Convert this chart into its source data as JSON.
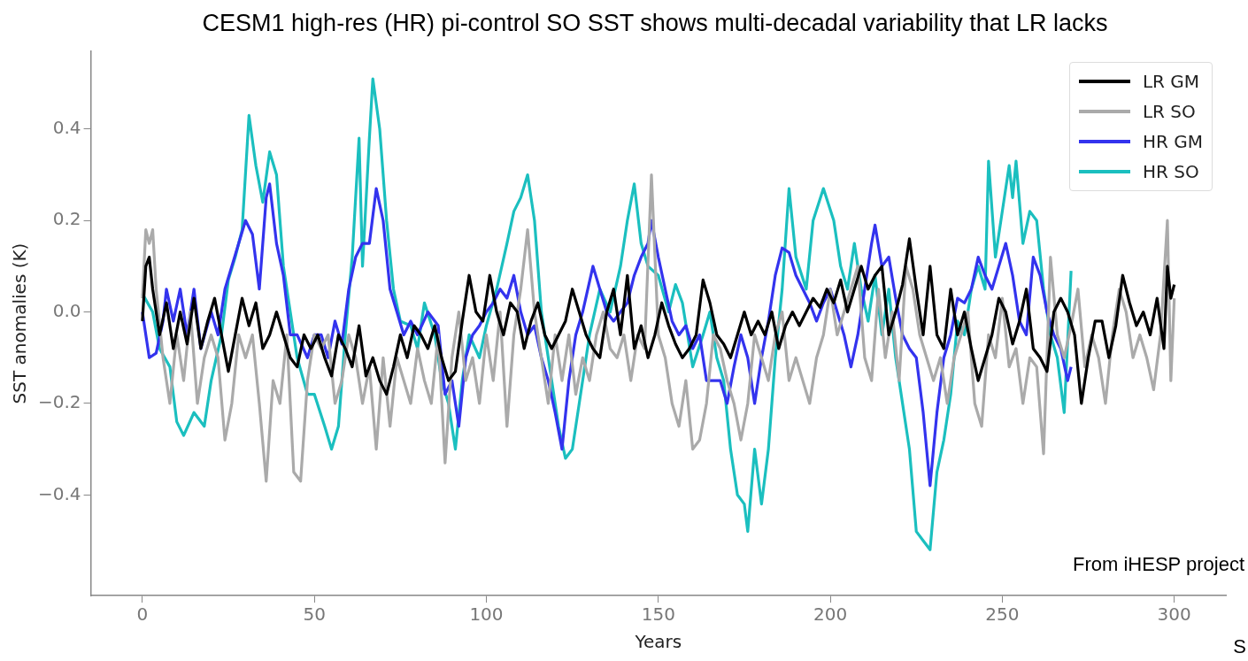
{
  "chart_data": {
    "type": "line",
    "title": "CESM1 high-res (HR) pi-control SO SST shows multi-decadal variability that LR lacks",
    "xlabel": "Years",
    "ylabel": "SST anomalies (K)",
    "xlim": [
      -15,
      315
    ],
    "xticks": [
      0,
      50,
      100,
      150,
      200,
      250,
      300
    ],
    "ylim": [
      -0.62,
      0.57
    ],
    "yticks": [
      {
        "value": -0.4,
        "label": "−0.4"
      },
      {
        "value": -0.2,
        "label": "−0.2"
      },
      {
        "value": 0,
        "label": "0.0"
      },
      {
        "value": 0.2,
        "label": "0.2"
      },
      {
        "value": 0.4,
        "label": "0.4"
      }
    ],
    "grid": false,
    "legend": "top right",
    "marker": "none",
    "line_style": "solid",
    "annotations": [
      "From iHESP project",
      "S"
    ],
    "series": [
      {
        "name": "LR GM",
        "color": "#000000",
        "x": [
          0,
          1,
          2,
          3,
          5,
          7,
          9,
          11,
          13,
          15,
          17,
          19,
          21,
          23,
          25,
          27,
          29,
          31,
          33,
          35,
          37,
          39,
          41,
          43,
          45,
          47,
          49,
          51,
          53,
          55,
          57,
          59,
          61,
          63,
          65,
          67,
          69,
          71,
          73,
          75,
          77,
          79,
          81,
          83,
          85,
          87,
          89,
          91,
          93,
          95,
          97,
          99,
          101,
          103,
          105,
          107,
          109,
          111,
          113,
          115,
          117,
          119,
          121,
          123,
          125,
          127,
          129,
          131,
          133,
          135,
          137,
          139,
          141,
          143,
          145,
          147,
          149,
          151,
          153,
          155,
          157,
          159,
          161,
          163,
          165,
          167,
          169,
          171,
          173,
          175,
          177,
          179,
          181,
          183,
          185,
          187,
          189,
          191,
          193,
          195,
          197,
          199,
          201,
          203,
          205,
          207,
          209,
          211,
          213,
          215,
          217,
          219,
          221,
          223,
          225,
          227,
          229,
          231,
          233,
          235,
          237,
          239,
          241,
          243,
          245,
          247,
          249,
          251,
          253,
          255,
          257,
          259,
          261,
          263,
          265,
          267,
          269,
          271,
          273,
          275,
          277,
          279,
          281,
          283,
          285,
          287,
          289,
          291,
          293,
          295,
          297,
          298,
          299,
          300
        ],
        "values": [
          -0.02,
          0.1,
          0.12,
          0.05,
          -0.05,
          0.02,
          -0.08,
          0.0,
          -0.07,
          0.03,
          -0.08,
          -0.02,
          0.03,
          -0.05,
          -0.13,
          -0.05,
          0.03,
          -0.03,
          0.02,
          -0.08,
          -0.05,
          0.0,
          -0.05,
          -0.1,
          -0.12,
          -0.05,
          -0.08,
          -0.05,
          -0.1,
          -0.14,
          -0.05,
          -0.08,
          -0.12,
          -0.03,
          -0.14,
          -0.1,
          -0.15,
          -0.18,
          -0.12,
          -0.05,
          -0.1,
          -0.03,
          -0.05,
          -0.08,
          -0.03,
          -0.1,
          -0.15,
          -0.13,
          -0.02,
          0.08,
          0.0,
          -0.02,
          0.08,
          0.0,
          -0.05,
          0.02,
          0.0,
          -0.08,
          -0.02,
          0.02,
          -0.05,
          -0.08,
          -0.05,
          -0.02,
          0.05,
          0.0,
          -0.05,
          -0.08,
          -0.1,
          0.0,
          0.05,
          -0.05,
          0.08,
          -0.08,
          -0.03,
          -0.1,
          -0.05,
          0.02,
          -0.03,
          -0.07,
          -0.1,
          -0.08,
          -0.05,
          0.07,
          0.02,
          -0.05,
          -0.07,
          -0.1,
          -0.05,
          0.0,
          -0.05,
          -0.02,
          -0.05,
          0.0,
          -0.08,
          -0.03,
          0.0,
          -0.03,
          0.0,
          0.03,
          0.01,
          0.05,
          0.02,
          0.07,
          0.0,
          0.05,
          0.1,
          0.05,
          0.08,
          0.1,
          -0.05,
          0.0,
          0.06,
          0.16,
          0.05,
          -0.05,
          0.1,
          -0.05,
          -0.08,
          0.05,
          -0.05,
          0.0,
          -0.08,
          -0.15,
          -0.1,
          -0.05,
          0.03,
          0.0,
          -0.07,
          -0.02,
          0.05,
          -0.08,
          -0.1,
          -0.13,
          0.0,
          0.03,
          0.0,
          -0.05,
          -0.2,
          -0.1,
          -0.02,
          -0.02,
          -0.1,
          -0.03,
          0.08,
          0.02,
          -0.03,
          0.0,
          -0.05,
          0.03,
          -0.08,
          0.1,
          0.03,
          0.06
        ]
      },
      {
        "name": "LR SO",
        "color": "#aaaaaa",
        "x": [
          0,
          1,
          2,
          3,
          4,
          6,
          8,
          10,
          12,
          14,
          16,
          18,
          20,
          22,
          24,
          26,
          28,
          30,
          32,
          34,
          36,
          38,
          40,
          42,
          44,
          46,
          48,
          50,
          52,
          54,
          56,
          58,
          60,
          62,
          64,
          66,
          68,
          70,
          72,
          74,
          76,
          78,
          80,
          82,
          84,
          86,
          88,
          90,
          92,
          94,
          96,
          98,
          100,
          102,
          104,
          106,
          108,
          110,
          112,
          114,
          116,
          118,
          120,
          122,
          124,
          126,
          128,
          130,
          132,
          134,
          136,
          138,
          140,
          142,
          144,
          146,
          148,
          150,
          152,
          154,
          156,
          158,
          160,
          162,
          164,
          166,
          168,
          170,
          172,
          174,
          176,
          178,
          180,
          182,
          184,
          186,
          188,
          190,
          192,
          194,
          196,
          198,
          200,
          202,
          204,
          206,
          208,
          210,
          212,
          214,
          216,
          218,
          220,
          222,
          224,
          226,
          228,
          230,
          232,
          234,
          236,
          238,
          240,
          242,
          244,
          246,
          248,
          250,
          252,
          254,
          256,
          258,
          260,
          262,
          264,
          266,
          268,
          270,
          272,
          274,
          276,
          278,
          280,
          282,
          284,
          286,
          288,
          290,
          292,
          294,
          296,
          298,
          299,
          300
        ],
        "values": [
          0.03,
          0.18,
          0.15,
          0.18,
          0.05,
          -0.1,
          -0.2,
          -0.05,
          -0.15,
          0.0,
          -0.2,
          -0.1,
          -0.05,
          -0.1,
          -0.28,
          -0.2,
          -0.05,
          -0.1,
          -0.05,
          -0.2,
          -0.37,
          -0.15,
          -0.2,
          -0.05,
          -0.35,
          -0.37,
          -0.15,
          -0.05,
          -0.08,
          -0.05,
          -0.2,
          -0.15,
          -0.05,
          -0.1,
          -0.2,
          -0.12,
          -0.3,
          -0.1,
          -0.25,
          -0.1,
          -0.15,
          -0.2,
          -0.08,
          -0.15,
          -0.2,
          -0.05,
          -0.33,
          -0.1,
          0.0,
          -0.15,
          -0.1,
          -0.2,
          -0.05,
          -0.15,
          0.0,
          -0.25,
          -0.05,
          0.05,
          0.18,
          0.0,
          -0.1,
          -0.2,
          -0.05,
          -0.15,
          -0.05,
          -0.18,
          -0.1,
          -0.15,
          -0.05,
          0.0,
          -0.08,
          -0.1,
          -0.05,
          -0.15,
          -0.05,
          -0.08,
          0.3,
          -0.05,
          -0.1,
          -0.2,
          -0.25,
          -0.15,
          -0.3,
          -0.28,
          -0.2,
          -0.05,
          -0.08,
          -0.15,
          -0.2,
          -0.28,
          -0.2,
          -0.05,
          -0.1,
          -0.15,
          -0.05,
          0.0,
          -0.15,
          -0.1,
          -0.15,
          -0.2,
          -0.1,
          -0.05,
          0.05,
          -0.05,
          0.0,
          0.05,
          0.1,
          -0.1,
          -0.15,
          0.05,
          -0.1,
          0.0,
          -0.15,
          0.1,
          0.05,
          -0.05,
          -0.1,
          -0.15,
          -0.1,
          -0.2,
          -0.1,
          -0.05,
          0.0,
          -0.2,
          -0.25,
          -0.05,
          -0.1,
          0.03,
          -0.12,
          -0.08,
          -0.2,
          -0.1,
          -0.12,
          -0.31,
          0.12,
          -0.05,
          -0.1,
          -0.03,
          0.05,
          -0.12,
          -0.05,
          -0.1,
          -0.2,
          -0.05,
          0.05,
          0.0,
          -0.1,
          -0.05,
          -0.1,
          -0.17,
          -0.05,
          0.2,
          -0.15,
          0.03
        ]
      },
      {
        "name": "HR GM",
        "color": "#3333ee",
        "x": [
          0,
          2,
          4,
          6,
          7,
          9,
          11,
          13,
          15,
          17,
          20,
          22,
          24,
          26,
          28,
          30,
          32,
          34,
          36,
          37,
          39,
          41,
          43,
          45,
          48,
          50,
          52,
          54,
          56,
          58,
          60,
          62,
          64,
          66,
          68,
          70,
          72,
          74,
          76,
          78,
          80,
          83,
          86,
          88,
          90,
          92,
          94,
          96,
          98,
          100,
          102,
          104,
          106,
          108,
          110,
          112,
          114,
          116,
          118,
          120,
          122,
          124,
          126,
          128,
          131,
          133,
          135,
          137,
          139,
          141,
          143,
          145,
          147,
          148,
          150,
          152,
          154,
          156,
          158,
          160,
          162,
          164,
          166,
          168,
          170,
          172,
          174,
          176,
          178,
          180,
          182,
          184,
          186,
          188,
          190,
          192,
          194,
          196,
          198,
          200,
          202,
          204,
          206,
          208,
          210,
          212,
          213,
          215,
          217,
          219,
          221,
          223,
          225,
          227,
          229,
          231,
          233,
          235,
          237,
          239,
          241,
          243,
          245,
          247,
          249,
          251,
          253,
          255,
          257,
          259,
          261,
          263,
          265,
          267,
          269,
          270
        ],
        "values": [
          0.0,
          -0.1,
          -0.09,
          -0.02,
          0.05,
          -0.02,
          0.05,
          -0.05,
          0.05,
          -0.08,
          0.0,
          -0.05,
          0.05,
          0.1,
          0.15,
          0.2,
          0.17,
          0.05,
          0.25,
          0.28,
          0.15,
          0.08,
          -0.05,
          -0.05,
          -0.1,
          -0.05,
          -0.05,
          -0.1,
          -0.02,
          -0.07,
          0.05,
          0.12,
          0.15,
          0.15,
          0.27,
          0.2,
          0.05,
          0.0,
          -0.05,
          -0.02,
          -0.05,
          0.0,
          -0.03,
          -0.18,
          -0.15,
          -0.25,
          -0.1,
          -0.05,
          -0.03,
          0.0,
          0.02,
          0.05,
          0.03,
          0.08,
          0.0,
          -0.05,
          -0.03,
          -0.1,
          -0.15,
          -0.22,
          -0.3,
          -0.15,
          -0.05,
          0.0,
          0.1,
          0.05,
          0.0,
          -0.02,
          0.0,
          0.02,
          0.08,
          0.12,
          0.15,
          0.2,
          0.12,
          0.05,
          -0.02,
          -0.05,
          -0.03,
          -0.08,
          -0.05,
          -0.15,
          -0.15,
          -0.15,
          -0.2,
          -0.12,
          -0.05,
          -0.1,
          -0.2,
          -0.1,
          -0.02,
          0.08,
          0.14,
          0.13,
          0.08,
          0.05,
          0.02,
          -0.02,
          0.02,
          0.05,
          0.0,
          -0.05,
          -0.12,
          -0.05,
          0.05,
          0.15,
          0.19,
          0.1,
          0.12,
          0.03,
          -0.05,
          -0.08,
          -0.1,
          -0.22,
          -0.38,
          -0.22,
          -0.1,
          -0.05,
          0.03,
          0.02,
          0.05,
          0.12,
          0.08,
          0.05,
          0.1,
          0.15,
          0.08,
          -0.02,
          -0.05,
          0.12,
          0.08,
          0.0,
          -0.05,
          -0.08,
          -0.15,
          -0.12
        ]
      },
      {
        "name": "HR SO",
        "color": "#1bbfbf",
        "x": [
          0,
          3,
          5,
          8,
          10,
          12,
          15,
          18,
          20,
          23,
          25,
          27,
          29,
          31,
          33,
          35,
          37,
          39,
          41,
          43,
          45,
          48,
          50,
          53,
          55,
          57,
          59,
          61,
          63,
          64,
          66,
          67,
          69,
          71,
          73,
          75,
          78,
          80,
          82,
          85,
          87,
          89,
          91,
          93,
          95,
          98,
          100,
          103,
          106,
          108,
          110,
          112,
          114,
          116,
          118,
          121,
          123,
          125,
          127,
          130,
          133,
          136,
          139,
          141,
          143,
          145,
          147,
          150,
          153,
          155,
          157,
          160,
          163,
          165,
          167,
          169,
          171,
          173,
          175,
          176,
          178,
          180,
          182,
          184,
          186,
          188,
          190,
          193,
          195,
          198,
          201,
          203,
          205,
          207,
          209,
          211,
          213,
          215,
          217,
          219,
          221,
          223,
          225,
          227,
          229,
          231,
          233,
          235,
          237,
          239,
          241,
          243,
          245,
          246,
          248,
          250,
          252,
          253,
          254,
          256,
          258,
          260,
          262,
          264,
          266,
          268,
          270
        ],
        "values": [
          0.04,
          0.0,
          -0.08,
          -0.12,
          -0.24,
          -0.27,
          -0.22,
          -0.25,
          -0.15,
          -0.05,
          0.07,
          0.12,
          0.18,
          0.43,
          0.32,
          0.24,
          0.35,
          0.3,
          0.1,
          0.0,
          -0.1,
          -0.18,
          -0.18,
          -0.25,
          -0.3,
          -0.25,
          -0.05,
          0.12,
          0.38,
          0.1,
          0.38,
          0.51,
          0.4,
          0.2,
          0.05,
          -0.02,
          -0.03,
          -0.08,
          0.02,
          -0.05,
          -0.15,
          -0.2,
          -0.3,
          -0.15,
          -0.05,
          -0.1,
          -0.03,
          0.05,
          0.15,
          0.22,
          0.25,
          0.3,
          0.2,
          0.0,
          -0.1,
          -0.25,
          -0.32,
          -0.3,
          -0.2,
          -0.05,
          0.05,
          0.0,
          0.1,
          0.2,
          0.28,
          0.15,
          0.1,
          0.08,
          0.0,
          0.06,
          0.02,
          -0.12,
          -0.05,
          0.0,
          -0.1,
          -0.15,
          -0.3,
          -0.4,
          -0.42,
          -0.48,
          -0.3,
          -0.42,
          -0.3,
          -0.1,
          0.05,
          0.27,
          0.12,
          0.05,
          0.2,
          0.27,
          0.2,
          0.1,
          0.05,
          0.15,
          0.05,
          -0.02,
          0.08,
          -0.05,
          0.05,
          -0.1,
          -0.2,
          -0.3,
          -0.48,
          -0.5,
          -0.52,
          -0.35,
          -0.28,
          -0.18,
          -0.02,
          -0.05,
          0.05,
          0.1,
          0.05,
          0.33,
          0.12,
          0.22,
          0.32,
          0.25,
          0.33,
          0.15,
          0.22,
          0.2,
          0.05,
          -0.05,
          -0.1,
          -0.22,
          0.09
        ]
      }
    ]
  }
}
